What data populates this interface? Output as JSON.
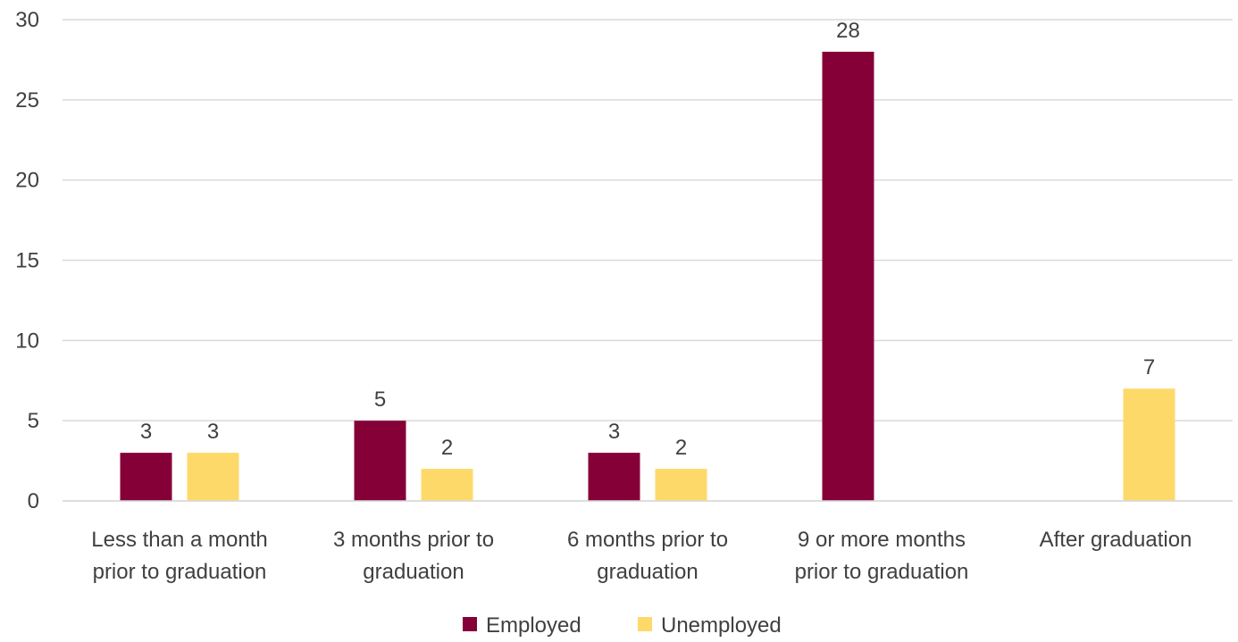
{
  "chart_data": {
    "type": "bar",
    "title": "",
    "xlabel": "",
    "ylabel": "",
    "ylim": [
      0,
      30
    ],
    "yticks": [
      0,
      5,
      10,
      15,
      20,
      25,
      30
    ],
    "grid": true,
    "legend_position": "bottom",
    "categories": [
      [
        "Less than a month",
        "prior to graduation"
      ],
      [
        "3 months prior to",
        "graduation"
      ],
      [
        "6 months prior to",
        "graduation"
      ],
      [
        "9 or more months",
        "prior to graduation"
      ],
      [
        "After graduation"
      ]
    ],
    "series": [
      {
        "name": "Employed",
        "color": "#860038",
        "values": [
          3,
          5,
          3,
          28,
          null
        ]
      },
      {
        "name": "Unemployed",
        "color": "#FDD96A",
        "values": [
          3,
          2,
          2,
          null,
          7
        ]
      }
    ]
  }
}
